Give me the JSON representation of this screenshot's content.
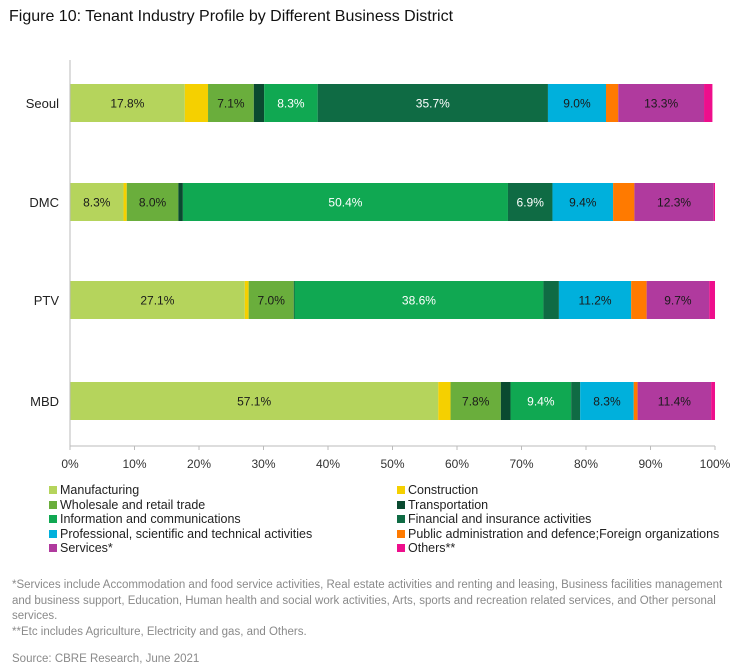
{
  "title": "Figure 10: Tenant Industry Profile by Different Business District",
  "footnotes": [
    "*Services include Accommodation and food service activities, Real estate activities and renting and leasing, Business facilities management and business support, Education, Human health and social work activities, Arts, sports and recreation related services, and Other personal services.",
    "**Etc includes Agriculture, Electricity and gas, and Others."
  ],
  "source": "Source: CBRE Research, June 2021",
  "chart_data": {
    "type": "bar",
    "orientation": "horizontal",
    "stacked": true,
    "title": "Figure 10: Tenant Industry Profile by Different Business District",
    "categories": [
      "Seoul",
      "DMC",
      "PTV",
      "MBD"
    ],
    "xlim": [
      0,
      100
    ],
    "x_ticks": [
      "0%",
      "10%",
      "20%",
      "30%",
      "40%",
      "50%",
      "60%",
      "70%",
      "80%",
      "90%",
      "100%"
    ],
    "grid": false,
    "legend_position": "bottom",
    "series": [
      {
        "name": "Manufacturing",
        "color": "#b5d45c",
        "values": [
          17.8,
          8.3,
          27.1,
          57.1
        ],
        "labels": [
          "17.8%",
          "8.3%",
          "27.1%",
          "57.1%"
        ]
      },
      {
        "name": "Construction",
        "color": "#f5d000",
        "values": [
          3.6,
          0.5,
          0.6,
          1.9
        ],
        "labels": [
          "",
          "",
          "",
          ""
        ]
      },
      {
        "name": "Wholesale and retail trade",
        "color": "#6aae3c",
        "values": [
          7.1,
          8.0,
          7.0,
          7.8
        ],
        "labels": [
          "7.1%",
          "8.0%",
          "7.0%",
          "7.8%"
        ]
      },
      {
        "name": "Transportation",
        "color": "#0a4a30",
        "values": [
          1.6,
          0.7,
          0.1,
          1.5
        ],
        "labels": [
          "",
          "",
          "",
          ""
        ]
      },
      {
        "name": "Information and communications",
        "color": "#10a852",
        "values": [
          8.3,
          50.4,
          38.6,
          9.4
        ],
        "labels": [
          "8.3%",
          "50.4%",
          "38.6%",
          "9.4%"
        ]
      },
      {
        "name": "Financial and insurance activities",
        "color": "#0f6b44",
        "values": [
          35.7,
          6.9,
          2.4,
          1.4
        ],
        "labels": [
          "35.7%",
          "6.9%",
          "",
          ""
        ]
      },
      {
        "name": "Professional, scientific and technical activities",
        "color": "#00b0dc",
        "values": [
          9.0,
          9.4,
          11.2,
          8.3
        ],
        "labels": [
          "9.0%",
          "9.4%",
          "11.2%",
          "8.3%"
        ]
      },
      {
        "name": "Public administration and defence;Foreign organizations",
        "color": "#ff7a00",
        "values": [
          1.9,
          3.3,
          2.4,
          0.6
        ],
        "labels": [
          "",
          "",
          "",
          ""
        ]
      },
      {
        "name": "Services*",
        "color": "#b03a9e",
        "values": [
          13.3,
          12.3,
          9.7,
          11.4
        ],
        "labels": [
          "13.3%",
          "12.3%",
          "9.7%",
          "11.4%"
        ]
      },
      {
        "name": "Others**",
        "color": "#ee0e8c",
        "values": [
          1.3,
          0.2,
          0.9,
          0.6
        ],
        "labels": [
          "",
          "",
          "",
          ""
        ]
      }
    ]
  }
}
